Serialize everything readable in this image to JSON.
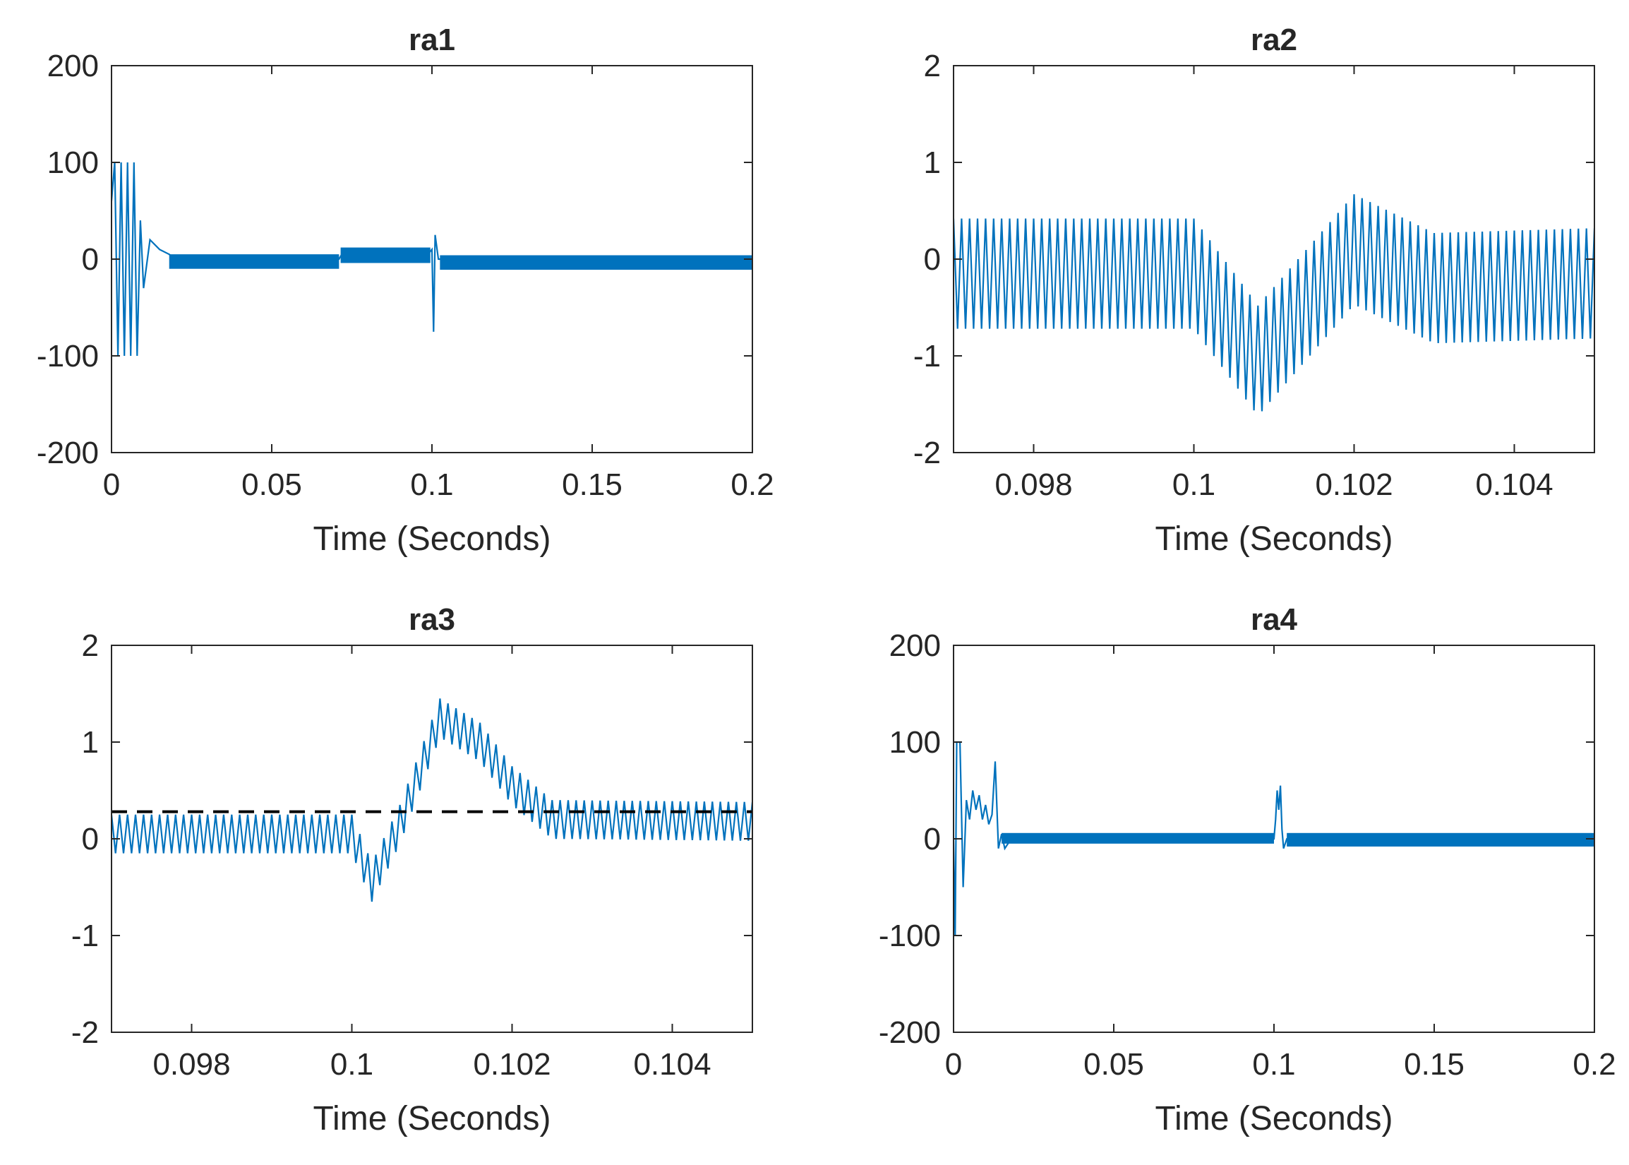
{
  "chart_data": [
    {
      "type": "line",
      "title": "ra1",
      "xlabel": "Time (Seconds)",
      "ylabel": "",
      "xlim": [
        0,
        0.2
      ],
      "ylim": [
        -200,
        200
      ],
      "xticks": [
        "0",
        "0.05",
        "0.1",
        "0.15",
        "0.2"
      ],
      "yticks": [
        "200",
        "100",
        "0",
        "-100",
        "-200"
      ],
      "series_color": "#0072BD",
      "series": [
        {
          "name": "ra1 signal",
          "x": [
            0,
            0.001,
            0.002,
            0.003,
            0.004,
            0.005,
            0.006,
            0.007,
            0.008,
            0.009,
            0.01,
            0.012,
            0.015,
            0.018,
            0.02,
            0.05,
            0.071,
            0.072,
            0.099,
            0.1,
            0.1005,
            0.101,
            0.102,
            0.104,
            0.15,
            0.2
          ],
          "values": [
            60,
            100,
            -100,
            100,
            -100,
            100,
            -100,
            100,
            -100,
            40,
            -30,
            20,
            10,
            5,
            0,
            0,
            0,
            6,
            6,
            10,
            -75,
            25,
            0,
            0,
            0,
            0
          ]
        }
      ],
      "bands": [
        {
          "x0": 0.018,
          "x1": 0.071,
          "y0": -10,
          "y1": 5
        },
        {
          "x0": 0.0715,
          "x1": 0.0995,
          "y0": -4,
          "y1": 12
        },
        {
          "x0": 0.1025,
          "x1": 0.2,
          "y0": -11,
          "y1": 4
        }
      ]
    },
    {
      "type": "line",
      "title": "ra2",
      "xlabel": "Time (Seconds)",
      "ylabel": "",
      "xlim": [
        0.097,
        0.105
      ],
      "ylim": [
        -2,
        2
      ],
      "xticks": [
        "0.098",
        "0.1",
        "0.102",
        "0.104"
      ],
      "yticks": [
        "2",
        "1",
        "0",
        "-1",
        "-2"
      ],
      "series_color": "#0072BD",
      "series": [
        {
          "name": "ra2 signal",
          "x": [
            0.097,
            0.1,
            0.1008,
            0.102,
            0.103,
            0.105
          ],
          "values": [
            -0.15,
            -0.15,
            -1.05,
            0.1,
            -0.3,
            -0.25
          ]
        }
      ],
      "oscillation": {
        "period": 0.0001,
        "amplitude": 0.57
      }
    },
    {
      "type": "line",
      "title": "ra3",
      "xlabel": "Time (Seconds)",
      "ylabel": "",
      "xlim": [
        0.097,
        0.105
      ],
      "ylim": [
        -2,
        2
      ],
      "xticks": [
        "0.098",
        "0.1",
        "0.102",
        "0.104"
      ],
      "yticks": [
        "2",
        "1",
        "0",
        "-1",
        "-2"
      ],
      "series_color": "#0072BD",
      "series": [
        {
          "name": "ra3 signal",
          "x": [
            0.097,
            0.1,
            0.1002,
            0.1025,
            0.1111,
            0.105
          ],
          "values": [
            0.05,
            0.05,
            -0.45,
            0.2,
            0.2,
            0.18
          ]
        }
      ],
      "series_points_custom": [
        [
          0.097,
          0.05
        ],
        [
          0.1,
          0.05
        ],
        [
          0.10025,
          -0.45
        ],
        [
          0.1006,
          0.15
        ],
        [
          0.1011,
          1.25
        ],
        [
          0.1016,
          1.0
        ],
        [
          0.102,
          0.55
        ],
        [
          0.1025,
          0.2
        ],
        [
          0.105,
          0.18
        ]
      ],
      "oscillation": {
        "period": 0.0001,
        "amplitude": 0.2
      },
      "reference_line": {
        "y": 0.28,
        "style": "dashed",
        "color": "#000000"
      }
    },
    {
      "type": "line",
      "title": "ra4",
      "xlabel": "Time (Seconds)",
      "ylabel": "",
      "xlim": [
        0,
        0.2
      ],
      "ylim": [
        -200,
        200
      ],
      "xticks": [
        "0",
        "0.05",
        "0.1",
        "0.15",
        "0.2"
      ],
      "yticks": [
        "200",
        "100",
        "0",
        "-100",
        "-200"
      ],
      "series_color": "#0072BD",
      "series": [
        {
          "name": "ra4 signal",
          "x": [
            0,
            0.0005,
            0.001,
            0.002,
            0.003,
            0.004,
            0.005,
            0.006,
            0.007,
            0.008,
            0.009,
            0.01,
            0.011,
            0.012,
            0.013,
            0.014,
            0.015,
            0.016,
            0.018,
            0.1,
            0.1005,
            0.101,
            0.1015,
            0.102,
            0.1025,
            0.103,
            0.104,
            0.2
          ],
          "values": [
            0,
            -100,
            100,
            100,
            -50,
            40,
            20,
            50,
            30,
            45,
            20,
            35,
            15,
            25,
            80,
            -10,
            5,
            -10,
            0,
            0,
            20,
            50,
            30,
            55,
            10,
            -10,
            0,
            0
          ]
        }
      ],
      "bands": [
        {
          "x0": 0.015,
          "x1": 0.1,
          "y0": -5,
          "y1": 6
        },
        {
          "x0": 0.104,
          "x1": 0.2,
          "y0": -8,
          "y1": 6
        }
      ]
    }
  ]
}
